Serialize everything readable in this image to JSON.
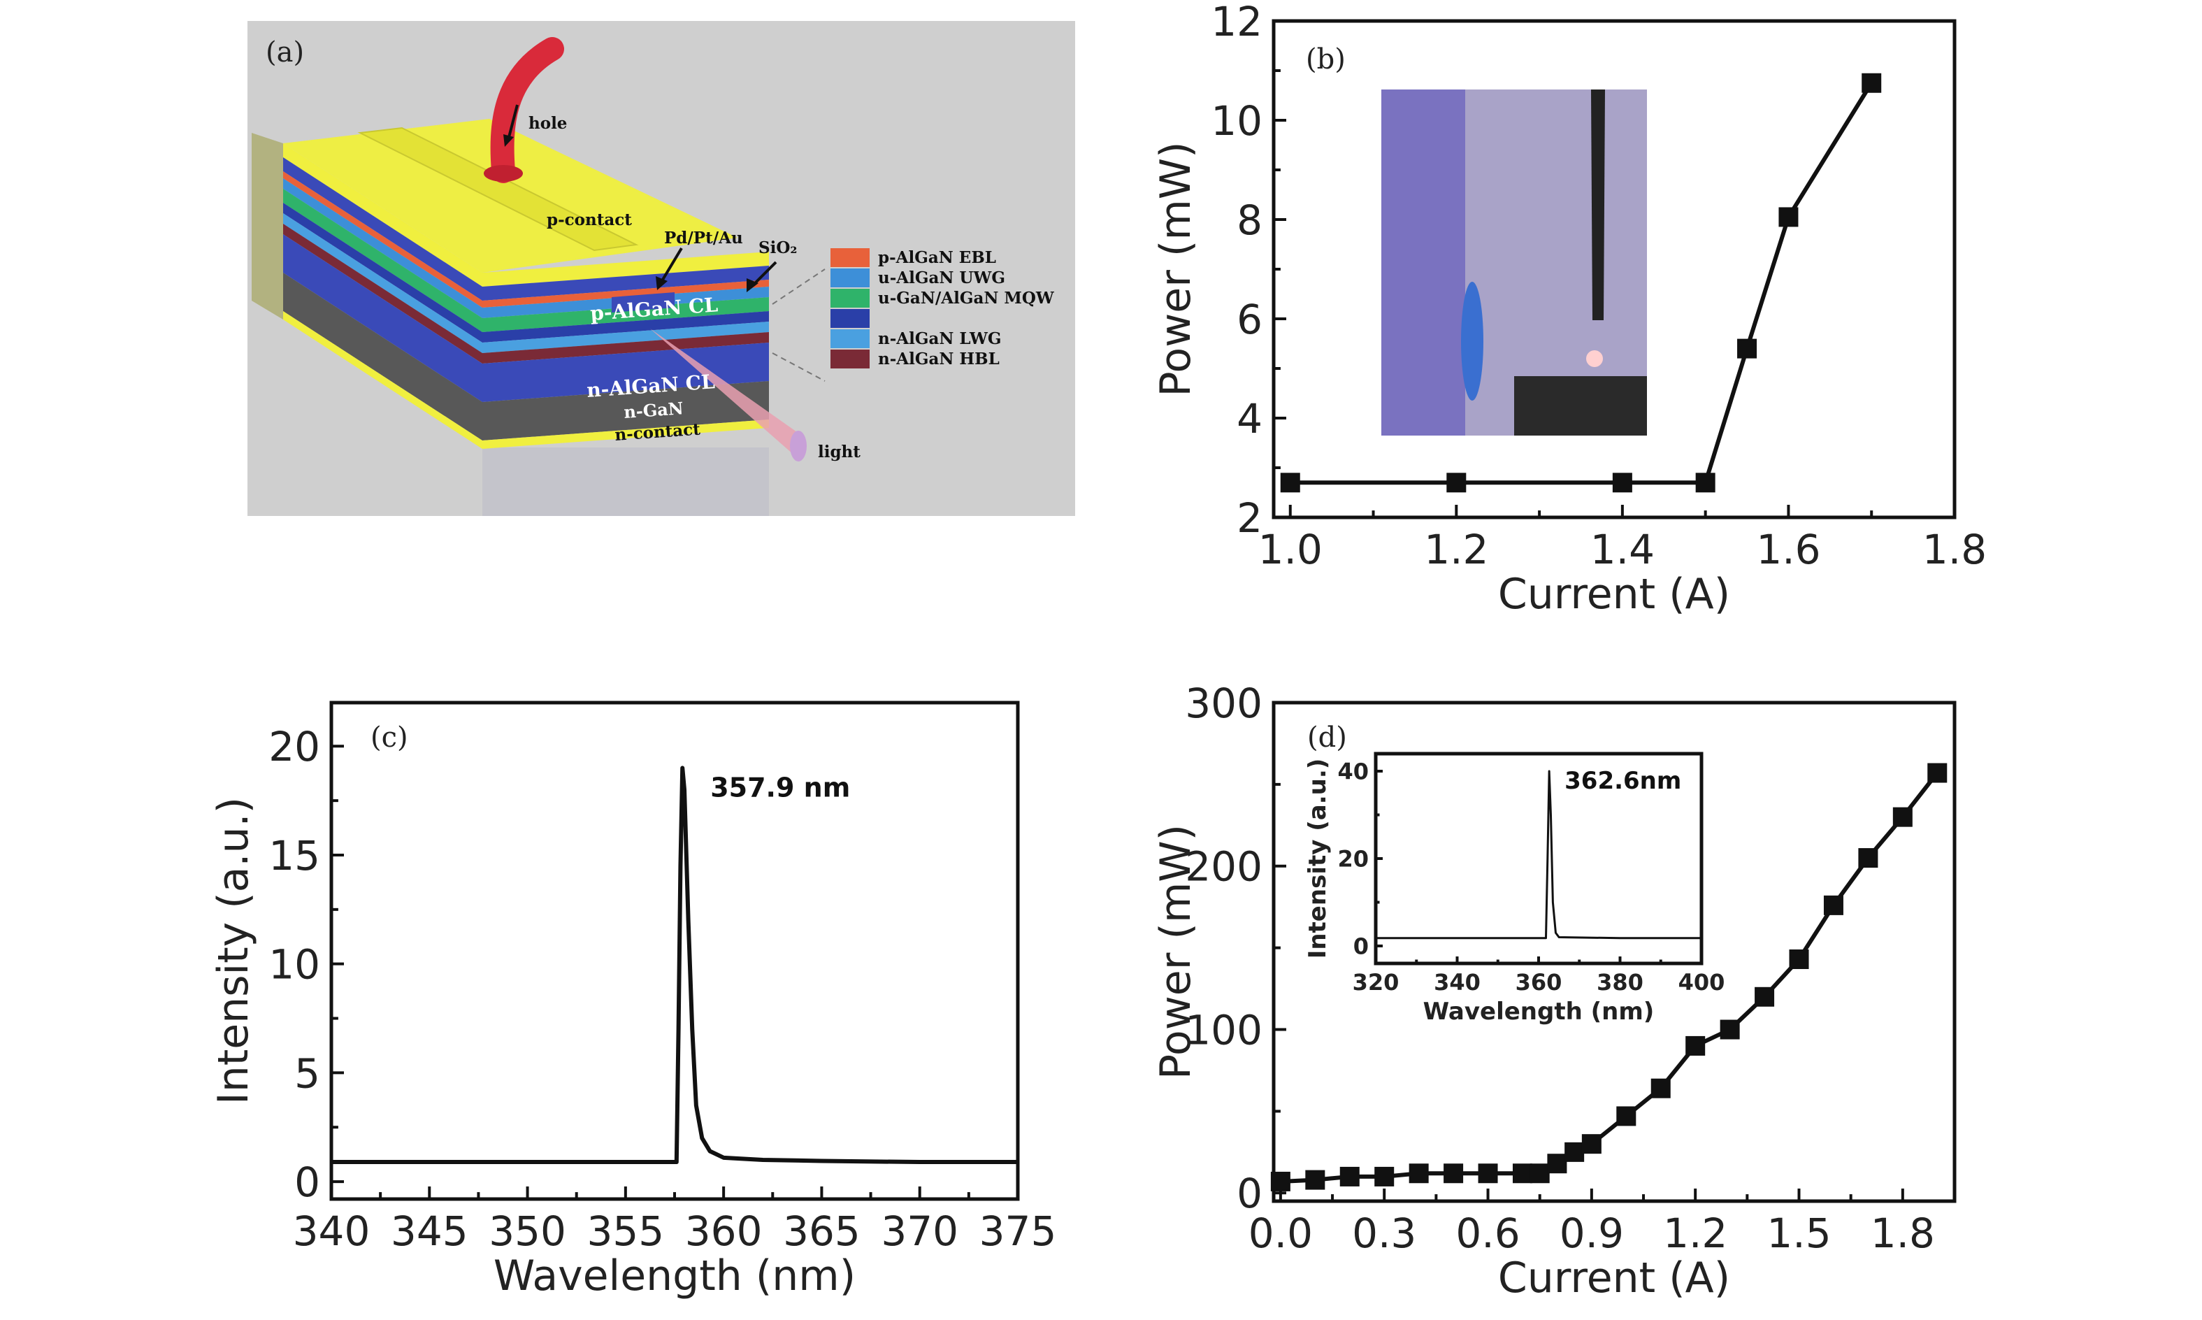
{
  "panel_a": {
    "label": "(a)",
    "labels": {
      "hole": "hole",
      "p_contact": "p-contact",
      "pd_pt_au": "Pd/Pt/Au",
      "sio2": "SiO₂",
      "p_algan_cl": "p-AlGaN CL",
      "n_algan_cl": "n-AlGaN CL",
      "n_gan": "n-GaN",
      "n_contact": "n-contact",
      "light": "light"
    },
    "legend": [
      {
        "label": "p-AlGaN EBL",
        "color": "#e8613a"
      },
      {
        "label": "u-AlGaN UWG",
        "color": "#3d8fd8"
      },
      {
        "label": "u-GaN/AlGaN MQW",
        "color": "#2fb36a"
      },
      {
        "label": "",
        "color": "#2a3fa8"
      },
      {
        "label": "n-AlGaN LWG",
        "color": "#4aa0e0"
      },
      {
        "label": "n-AlGaN HBL",
        "color": "#7a2a36"
      }
    ],
    "colors": {
      "contact": "#f0ef3f",
      "cl_blue": "#3a4ab8",
      "gan_gray": "#585858",
      "background": "#cfcfcf",
      "arrow": "#d92a3a"
    }
  },
  "chart_data": [
    {
      "type": "line",
      "panel_label": "(b)",
      "xlabel": "Current (A)",
      "ylabel": "Power (mW)",
      "xlim": [
        0.98,
        1.8
      ],
      "ylim": [
        2,
        12
      ],
      "xticks": [
        1.0,
        1.2,
        1.4,
        1.6,
        1.8
      ],
      "yticks": [
        2,
        4,
        6,
        8,
        10,
        12
      ],
      "xtick_labels": [
        "1.0",
        "1.2",
        "1.4",
        "1.6",
        "1.8"
      ],
      "ytick_labels": [
        "2",
        "4",
        "6",
        "8",
        "10",
        "12"
      ],
      "marker": "square",
      "series": [
        {
          "x": [
            1.0,
            1.2,
            1.4,
            1.5,
            1.55,
            1.6,
            1.7
          ],
          "y": [
            2.7,
            2.7,
            2.7,
            2.7,
            5.4,
            8.05,
            10.75
          ]
        }
      ],
      "inset_photo": true
    },
    {
      "type": "line",
      "panel_label": "(c)",
      "xlabel": "Wavelength (nm)",
      "ylabel": "Intensity (a.u.)",
      "xlim": [
        340,
        375
      ],
      "ylim": [
        -0.8,
        22
      ],
      "xticks": [
        340,
        345,
        350,
        355,
        360,
        365,
        370,
        375
      ],
      "yticks": [
        0,
        5,
        10,
        15,
        20
      ],
      "xtick_labels": [
        "340",
        "345",
        "350",
        "355",
        "360",
        "365",
        "370",
        "375"
      ],
      "ytick_labels": [
        "0",
        "5",
        "10",
        "15",
        "20"
      ],
      "annotation": "357.9 nm",
      "series": [
        {
          "x": [
            340,
            350,
            357.6,
            357.7,
            357.8,
            357.9,
            358.0,
            358.2,
            358.4,
            358.6,
            358.9,
            359.3,
            360,
            362,
            365,
            370,
            375
          ],
          "y": [
            0.9,
            0.9,
            0.9,
            7.0,
            14.5,
            19.0,
            18.0,
            12.0,
            7.0,
            3.5,
            2.0,
            1.4,
            1.1,
            1.0,
            0.95,
            0.9,
            0.9
          ]
        }
      ]
    },
    {
      "type": "line",
      "panel_label": "(d)",
      "xlabel": "Current (A)",
      "ylabel": "Power (mW)",
      "xlim": [
        -0.02,
        1.95
      ],
      "ylim": [
        -5,
        300
      ],
      "xticks": [
        0.0,
        0.3,
        0.6,
        0.9,
        1.2,
        1.5,
        1.8
      ],
      "yticks": [
        0,
        100,
        200,
        300
      ],
      "xtick_labels": [
        "0.0",
        "0.3",
        "0.6",
        "0.9",
        "1.2",
        "1.5",
        "1.8"
      ],
      "ytick_labels": [
        "0",
        "100",
        "200",
        "300"
      ],
      "marker": "square",
      "series": [
        {
          "x": [
            0.0,
            0.1,
            0.2,
            0.3,
            0.4,
            0.5,
            0.6,
            0.7,
            0.75,
            0.8,
            0.85,
            0.9,
            1.0,
            1.1,
            1.2,
            1.3,
            1.4,
            1.5,
            1.6,
            1.7,
            1.8,
            1.9
          ],
          "y": [
            7,
            8,
            10,
            10,
            12,
            12,
            12,
            12,
            12,
            18,
            25,
            30,
            47,
            64,
            90,
            100,
            120,
            143,
            176,
            205,
            230,
            257
          ]
        }
      ],
      "inset": {
        "type": "line",
        "xlabel": "Wavelength (nm)",
        "ylabel": "Intensity (a.u.)",
        "xlim": [
          320,
          400
        ],
        "ylim": [
          -4,
          44
        ],
        "xticks": [
          320,
          340,
          360,
          380,
          400
        ],
        "yticks": [
          0,
          20,
          40
        ],
        "xtick_labels": [
          "320",
          "340",
          "360",
          "380",
          "400"
        ],
        "ytick_labels": [
          "0",
          "20",
          "40"
        ],
        "annotation": "362.6nm",
        "series": [
          {
            "x": [
              320,
              340,
              361.8,
              362.2,
              362.6,
              363.0,
              363.5,
              364.2,
              365,
              380,
              400
            ],
            "y": [
              1.8,
              1.8,
              1.8,
              20,
              40,
              30,
              10,
              3,
              2,
              1.8,
              1.8
            ]
          }
        ]
      }
    }
  ]
}
